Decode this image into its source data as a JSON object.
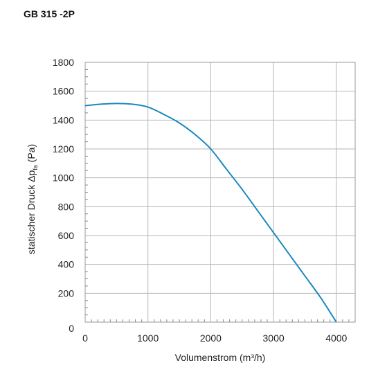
{
  "header": {
    "title": "GB 315 -2P"
  },
  "chart_data": {
    "type": "line",
    "title": "GB 315 -2P",
    "xlabel": "Volumenstrom (m³/h)",
    "ylabel_main": "statischer Druck Δp",
    "ylabel_sub": "fa",
    "ylabel_unit": " (Pa)",
    "xlim": [
      0,
      4300
    ],
    "ylim": [
      0,
      1800
    ],
    "x_ticks": [
      0,
      1000,
      2000,
      3000,
      4000
    ],
    "y_ticks": [
      0,
      200,
      400,
      600,
      800,
      1000,
      1200,
      1400,
      1600,
      1800
    ],
    "grid": true,
    "curve_color": "#1a88c0",
    "series": [
      {
        "values_x": [
          0,
          250,
          500,
          750,
          1000,
          1250,
          1500,
          1750,
          2000,
          2250,
          2500,
          2750,
          3000,
          3250,
          3500,
          3750,
          4000
        ],
        "values_y": [
          1500,
          1510,
          1515,
          1510,
          1490,
          1440,
          1380,
          1300,
          1200,
          1060,
          920,
          770,
          620,
          470,
          320,
          170,
          0
        ]
      }
    ]
  }
}
